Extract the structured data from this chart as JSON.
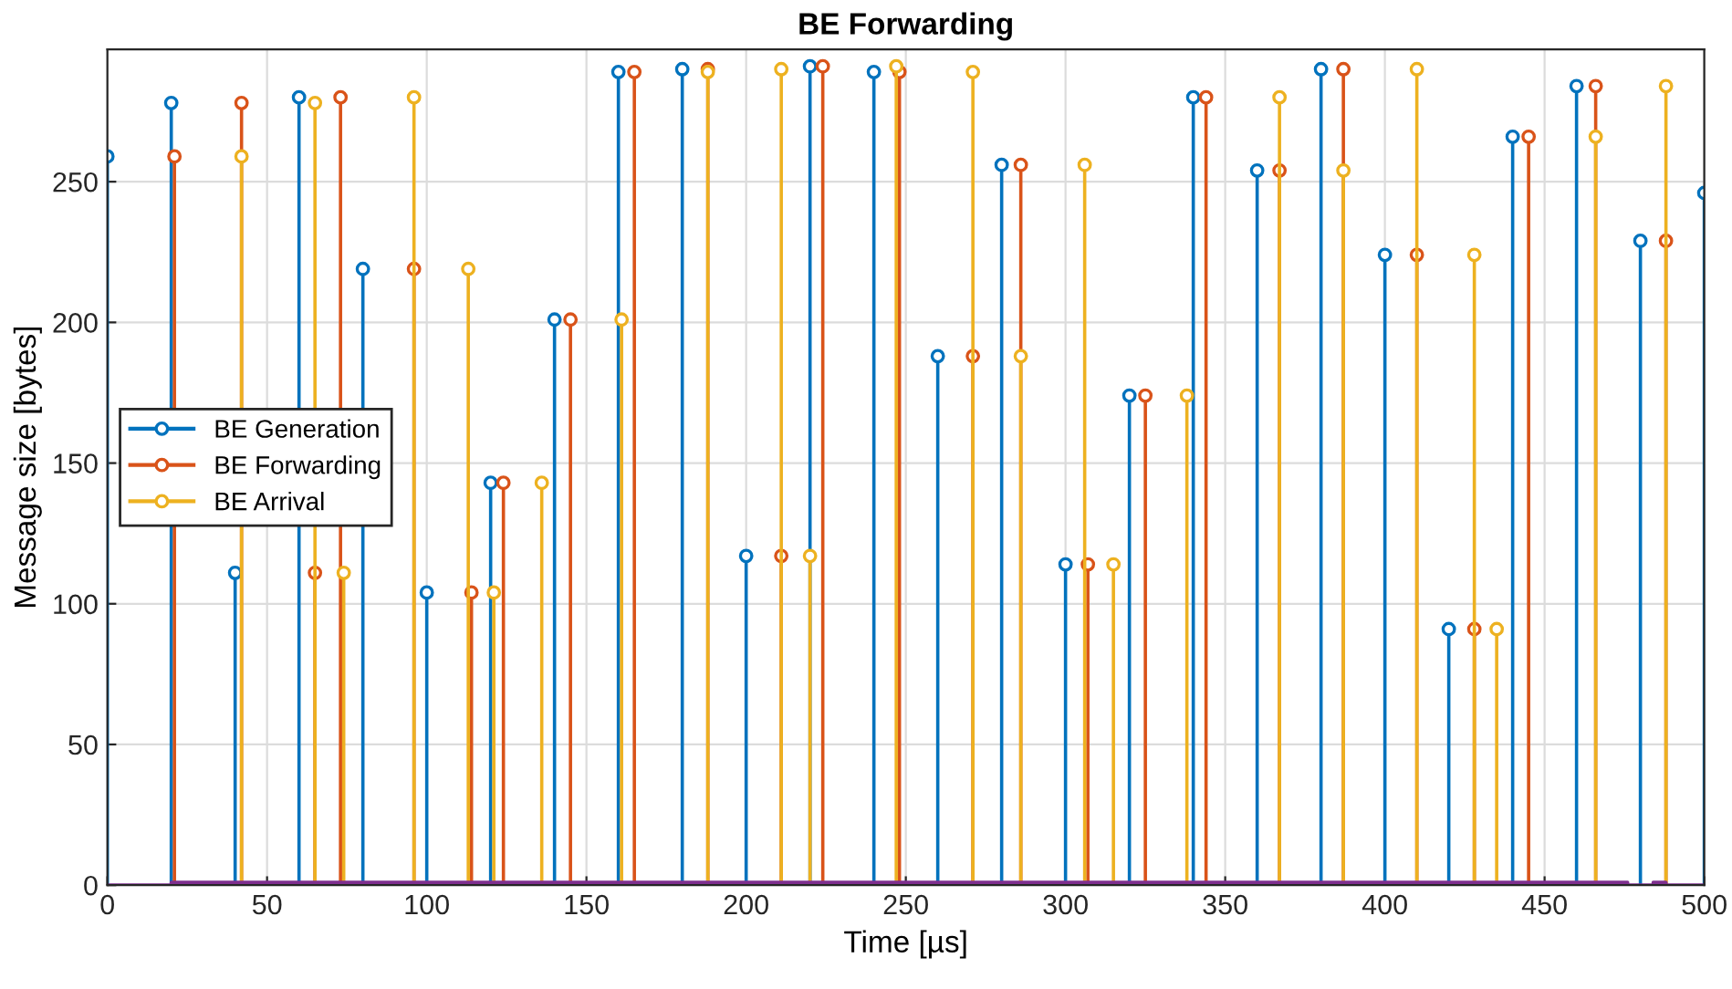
{
  "chart_data": {
    "type": "lollipop",
    "title": "BE Forwarding",
    "xlabel": "Time [µs]",
    "ylabel": "Message size [bytes]",
    "xlim": [
      0,
      500
    ],
    "ylim": [
      0,
      297
    ],
    "xticks": [
      0,
      50,
      100,
      150,
      200,
      250,
      300,
      350,
      400,
      450,
      500
    ],
    "yticks": [
      0,
      50,
      100,
      150,
      200,
      250
    ],
    "grid": true,
    "legend": "left",
    "marker": "circle",
    "series": [
      {
        "name": "BE Generation",
        "color": "#0072bd",
        "x": [
          0,
          20,
          40,
          60,
          80,
          100,
          120,
          140,
          160,
          180,
          200,
          220,
          240,
          260,
          280,
          300,
          320,
          340,
          360,
          380,
          400,
          420,
          440,
          460,
          480,
          500
        ],
        "values": [
          259,
          278,
          111,
          280,
          219,
          104,
          143,
          201,
          289,
          290,
          117,
          291,
          289,
          188,
          256,
          114,
          174,
          280,
          254,
          290,
          224,
          91,
          266,
          284,
          229,
          246
        ]
      },
      {
        "name": "BE Forwarding",
        "color": "#d95319",
        "x": [
          21,
          42,
          65,
          73,
          96,
          114,
          124,
          145,
          165,
          188,
          211,
          224,
          248,
          271,
          286,
          307,
          325,
          344,
          367,
          387,
          410,
          428,
          445,
          466,
          488
        ],
        "values": [
          259,
          278,
          111,
          280,
          219,
          104,
          143,
          201,
          289,
          290,
          117,
          291,
          289,
          188,
          256,
          114,
          174,
          280,
          254,
          290,
          224,
          91,
          266,
          284,
          229
        ]
      },
      {
        "name": "BE Arrival",
        "color": "#edb120",
        "x": [
          42,
          65,
          74,
          96,
          113,
          121,
          136,
          161,
          188,
          211,
          220,
          247,
          271,
          286,
          306,
          315,
          338,
          367,
          387,
          410,
          428,
          435,
          466,
          488
        ],
        "values": [
          259,
          278,
          111,
          280,
          219,
          104,
          143,
          201,
          289,
          290,
          117,
          291,
          289,
          188,
          256,
          114,
          174,
          280,
          254,
          290,
          224,
          91,
          266,
          284
        ]
      },
      {
        "type": "line",
        "color": "#7e2f8e",
        "marker": "none",
        "x": [
          0,
          20,
          20,
          476,
          476,
          484,
          484,
          488,
          488,
          500
        ],
        "values": [
          0,
          0,
          1,
          1,
          0,
          0,
          1,
          1,
          0,
          0
        ]
      }
    ]
  }
}
